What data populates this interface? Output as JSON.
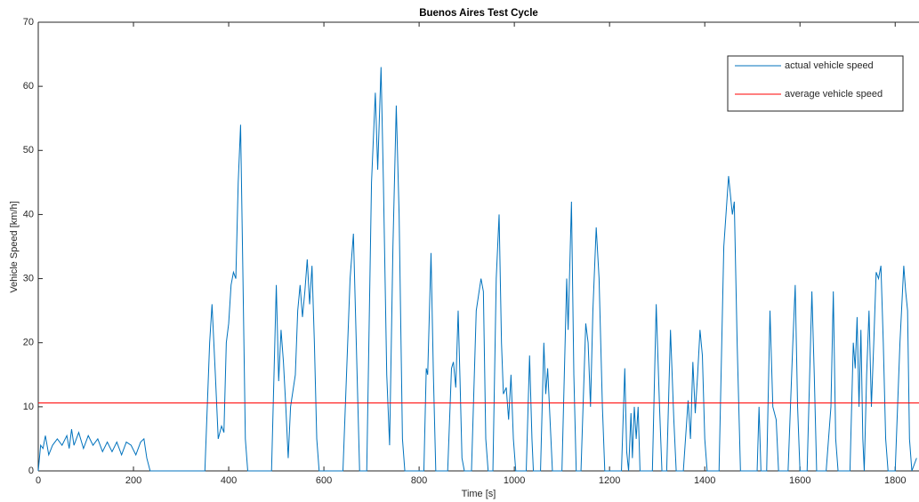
{
  "chart_data": {
    "type": "line",
    "title": "Buenos Aires Test Cycle",
    "x_label": "Time [s]",
    "y_label": "Vehicle Speed [km/h]",
    "xlim": [
      0,
      1850
    ],
    "xticks": [
      0,
      200,
      400,
      600,
      800,
      1000,
      1200,
      1400,
      1600,
      1800
    ],
    "ylim": [
      0,
      70
    ],
    "yticks": [
      0,
      10,
      20,
      30,
      40,
      50,
      60,
      70
    ],
    "grid": false,
    "legend": "upper right",
    "series": [
      {
        "name": "actual vehicle speed",
        "color": "#0072bd",
        "x": [
          0,
          5,
          10,
          15,
          22,
          30,
          40,
          50,
          60,
          65,
          70,
          75,
          85,
          95,
          105,
          115,
          125,
          135,
          145,
          155,
          165,
          175,
          185,
          195,
          205,
          215,
          222,
          228,
          235,
          350,
          360,
          365,
          372,
          378,
          385,
          390,
          395,
          400,
          405,
          410,
          415,
          420,
          425,
          430,
          435,
          440,
          490,
          500,
          505,
          510,
          515,
          520,
          525,
          530,
          540,
          545,
          550,
          555,
          560,
          565,
          570,
          575,
          580,
          585,
          590,
          640,
          655,
          662,
          668,
          675,
          690,
          700,
          708,
          713,
          720,
          725,
          732,
          738,
          745,
          752,
          758,
          765,
          770,
          810,
          815,
          818,
          825,
          830,
          835,
          860,
          868,
          872,
          877,
          882,
          886,
          890,
          895,
          910,
          920,
          930,
          935,
          940,
          945,
          955,
          962,
          968,
          973,
          977,
          983,
          988,
          993,
          998,
          1003,
          1025,
          1032,
          1037,
          1040,
          1055,
          1062,
          1066,
          1070,
          1075,
          1080,
          1100,
          1110,
          1113,
          1120,
          1125,
          1130,
          1140,
          1150,
          1155,
          1160,
          1165,
          1172,
          1178,
          1185,
          1190,
          1225,
          1232,
          1236,
          1240,
          1245,
          1248,
          1252,
          1256,
          1260,
          1264,
          1290,
          1298,
          1305,
          1310,
          1320,
          1328,
          1335,
          1340,
          1355,
          1365,
          1370,
          1375,
          1380,
          1385,
          1390,
          1395,
          1400,
          1405,
          1430,
          1440,
          1450,
          1458,
          1462,
          1468,
          1475,
          1510,
          1514,
          1518,
          1530,
          1537,
          1543,
          1550,
          1555,
          1575,
          1585,
          1590,
          1595,
          1600,
          1615,
          1625,
          1630,
          1635,
          1655,
          1665,
          1670,
          1675,
          1680,
          1705,
          1712,
          1716,
          1720,
          1724,
          1728,
          1732,
          1735,
          1740,
          1745,
          1750,
          1755,
          1760,
          1765,
          1770,
          1775,
          1780,
          1785,
          1800,
          1810,
          1818,
          1822,
          1826,
          1830,
          1835,
          1845
        ],
        "values": [
          0,
          4,
          3.5,
          5.5,
          2.5,
          4,
          5,
          4,
          5.5,
          3.5,
          6.5,
          4,
          6,
          3.5,
          5.5,
          4,
          5,
          3,
          4.5,
          3,
          4.5,
          2.5,
          4.5,
          4,
          2.5,
          4.5,
          5,
          2,
          0,
          0,
          20,
          26,
          15,
          5,
          7,
          6,
          20,
          23,
          29,
          31,
          30,
          45,
          54,
          30,
          5,
          0,
          0,
          29,
          14,
          22,
          17,
          10,
          2,
          10,
          15,
          25,
          29,
          24,
          28,
          33,
          26,
          32,
          20,
          5,
          0,
          0,
          30,
          37,
          20,
          0,
          0,
          45,
          59,
          47,
          63,
          45,
          15,
          4,
          35,
          57,
          40,
          5,
          0,
          0,
          16,
          15,
          34,
          15,
          0,
          0,
          16,
          17,
          13,
          25,
          14,
          2,
          0,
          0,
          25,
          30,
          28,
          5,
          0,
          0,
          30,
          40,
          20,
          12,
          13,
          8,
          15,
          5,
          0,
          0,
          18,
          5,
          0,
          0,
          20,
          12,
          16,
          8,
          0,
          0,
          30,
          22,
          42,
          15,
          0,
          0,
          23,
          20,
          10,
          25,
          38,
          30,
          10,
          0,
          0,
          16,
          3,
          0,
          9,
          2,
          10,
          5,
          10,
          0,
          0,
          26,
          10,
          0,
          0,
          22,
          8,
          0,
          0,
          11,
          5,
          17,
          9,
          15,
          22,
          18,
          5,
          0,
          0,
          35,
          46,
          40,
          42,
          20,
          0,
          0,
          10,
          0,
          0,
          25,
          10,
          8,
          0,
          0,
          20,
          29,
          10,
          0,
          0,
          28,
          15,
          0,
          0,
          10,
          28,
          5,
          0,
          0,
          20,
          16,
          24,
          10,
          22,
          5,
          0,
          15,
          25,
          10,
          20,
          31,
          30,
          32,
          20,
          5,
          0,
          0,
          20,
          32,
          28,
          25,
          5,
          0,
          2
        ]
      },
      {
        "name": "average vehicle speed",
        "color": "#ff0000",
        "x": [
          0,
          1850
        ],
        "values": [
          10.6,
          10.6
        ]
      }
    ]
  }
}
